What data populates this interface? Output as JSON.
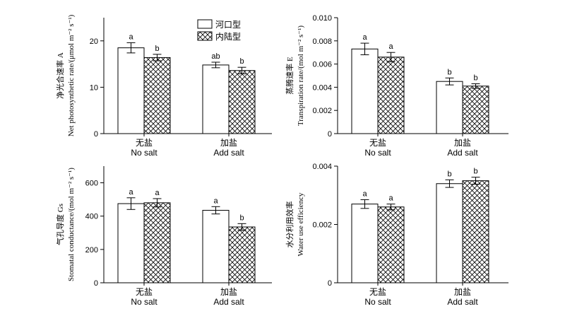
{
  "legend": {
    "items": [
      {
        "label": "河口型",
        "pattern": "white"
      },
      {
        "label": "内陆型",
        "pattern": "crosshatch"
      }
    ]
  },
  "colors": {
    "bar_stroke": "#000000",
    "bar_fill": "#ffffff",
    "axis": "#000000"
  },
  "chart_data": [
    {
      "type": "bar",
      "panel": "top-left",
      "categories": [
        "无盐",
        "加盐"
      ],
      "categories_en": [
        "No salt",
        "Add salt"
      ],
      "ylabel_cn": "净光合速率 A",
      "ylabel_en": "Net photosynthetic rate/(μmol m⁻² s⁻¹)",
      "ylim": [
        0,
        25
      ],
      "yticks": [
        0,
        10,
        20
      ],
      "tick_decimals": 0,
      "series": [
        {
          "name": "河口型",
          "values": [
            18.5,
            14.8
          ],
          "errors": [
            1.1,
            0.6
          ],
          "sig": [
            "a",
            "ab"
          ]
        },
        {
          "name": "内陆型",
          "values": [
            16.4,
            13.6
          ],
          "errors": [
            0.7,
            0.7
          ],
          "sig": [
            "b",
            "b"
          ]
        }
      ]
    },
    {
      "type": "bar",
      "panel": "top-right",
      "categories": [
        "无盐",
        "加盐"
      ],
      "categories_en": [
        "No salt",
        "Add salt"
      ],
      "ylabel_cn": "蒸腾速率 E",
      "ylabel_en": "Transpiration rate/(mol m⁻² s⁻¹)",
      "ylim": [
        0,
        0.01
      ],
      "yticks": [
        0,
        0.002,
        0.004,
        0.006,
        0.008,
        0.01
      ],
      "tick_labels": [
        "0",
        "0.002",
        "0.004",
        "0.006",
        "0.008",
        "0.010"
      ],
      "tick_decimals": 3,
      "series": [
        {
          "name": "河口型",
          "values": [
            0.0073,
            0.0045
          ],
          "errors": [
            0.0005,
            0.0003
          ],
          "sig": [
            "a",
            "b"
          ]
        },
        {
          "name": "内陆型",
          "values": [
            0.0066,
            0.0041
          ],
          "errors": [
            0.0004,
            0.0002
          ],
          "sig": [
            "a",
            "b"
          ]
        }
      ]
    },
    {
      "type": "bar",
      "panel": "bottom-left",
      "categories": [
        "无盐",
        "加盐"
      ],
      "categories_en": [
        "No salt",
        "Add salt"
      ],
      "ylabel_cn": "气孔导度 Gs",
      "ylabel_en": "Stomatal conductance/(mol m⁻² s⁻¹)",
      "ylim": [
        0,
        700
      ],
      "yticks": [
        0,
        200,
        400,
        600
      ],
      "tick_decimals": 0,
      "series": [
        {
          "name": "河口型",
          "values": [
            475,
            435
          ],
          "errors": [
            35,
            22
          ],
          "sig": [
            "a",
            "a"
          ]
        },
        {
          "name": "内陆型",
          "values": [
            480,
            335
          ],
          "errors": [
            25,
            20
          ],
          "sig": [
            "a",
            "b"
          ]
        }
      ]
    },
    {
      "type": "bar",
      "panel": "bottom-right",
      "categories": [
        "无盐",
        "加盐"
      ],
      "categories_en": [
        "No salt",
        "Add salt"
      ],
      "ylabel_cn": "水分利用效率",
      "ylabel_en": "Water use efficiency",
      "ylim": [
        0,
        0.004
      ],
      "yticks": [
        0,
        0.002,
        0.004
      ],
      "tick_labels": [
        "0",
        "0.002",
        "0.004"
      ],
      "tick_decimals": 3,
      "series": [
        {
          "name": "河口型",
          "values": [
            0.0027,
            0.0034
          ],
          "errors": [
            0.00015,
            0.00013
          ],
          "sig": [
            "a",
            "b"
          ]
        },
        {
          "name": "内陆型",
          "values": [
            0.0026,
            0.0035
          ],
          "errors": [
            0.0001,
            0.00012
          ],
          "sig": [
            "a",
            "b"
          ]
        }
      ]
    }
  ]
}
